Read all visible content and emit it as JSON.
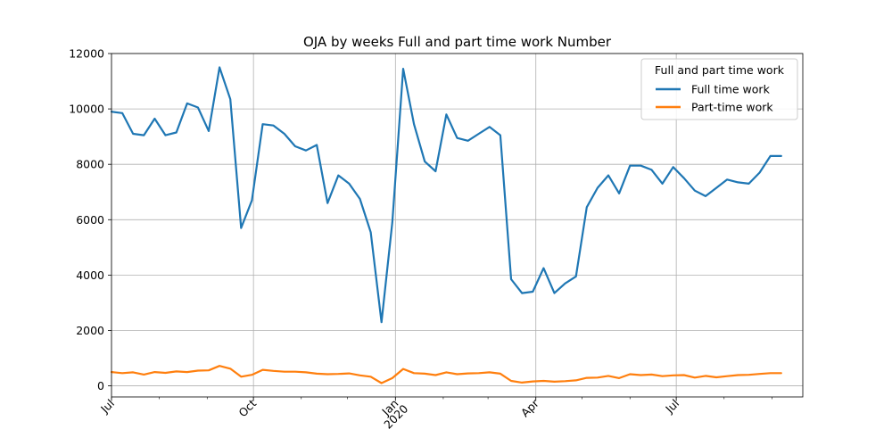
{
  "chart_data": {
    "type": "line",
    "title": "OJA by weeks Full and part time work Number",
    "xlabel": "",
    "ylabel": "",
    "ylim": [
      -400,
      12000
    ],
    "xlim": [
      "2019-07-01",
      "2020-09-21"
    ],
    "grid": true,
    "legend": {
      "title": "Full and part time work",
      "placement": "top-right"
    },
    "yticks": [
      0,
      2000,
      4000,
      6000,
      8000,
      10000,
      12000
    ],
    "yticklabels": [
      "0",
      "2000",
      "4000",
      "6000",
      "8000",
      "10000",
      "12000"
    ],
    "xticks": [
      {
        "date": "2019-07-01",
        "label": "Jul",
        "sublabel": ""
      },
      {
        "date": "2019-10-01",
        "label": "Oct",
        "sublabel": ""
      },
      {
        "date": "2020-01-01",
        "label": "Jan",
        "sublabel": "2020"
      },
      {
        "date": "2020-04-01",
        "label": "Apr",
        "sublabel": ""
      },
      {
        "date": "2020-07-01",
        "label": "Jul",
        "sublabel": ""
      }
    ],
    "x": [
      "2019-07-01",
      "2019-07-08",
      "2019-07-15",
      "2019-07-22",
      "2019-07-29",
      "2019-08-05",
      "2019-08-12",
      "2019-08-19",
      "2019-08-26",
      "2019-09-02",
      "2019-09-09",
      "2019-09-16",
      "2019-09-23",
      "2019-09-30",
      "2019-10-07",
      "2019-10-14",
      "2019-10-21",
      "2019-10-28",
      "2019-11-04",
      "2019-11-11",
      "2019-11-18",
      "2019-11-25",
      "2019-12-02",
      "2019-12-09",
      "2019-12-16",
      "2019-12-23",
      "2019-12-30",
      "2020-01-06",
      "2020-01-13",
      "2020-01-20",
      "2020-01-27",
      "2020-02-03",
      "2020-02-10",
      "2020-02-17",
      "2020-02-24",
      "2020-03-02",
      "2020-03-09",
      "2020-03-16",
      "2020-03-23",
      "2020-03-30",
      "2020-04-06",
      "2020-04-13",
      "2020-04-20",
      "2020-04-27",
      "2020-05-04",
      "2020-05-11",
      "2020-05-18",
      "2020-05-25",
      "2020-06-01",
      "2020-06-08",
      "2020-06-15",
      "2020-06-22",
      "2020-06-29",
      "2020-07-06",
      "2020-07-13",
      "2020-07-20",
      "2020-07-27",
      "2020-08-03",
      "2020-08-10",
      "2020-08-17",
      "2020-08-24",
      "2020-08-31",
      "2020-09-07"
    ],
    "series": [
      {
        "name": "Full time work",
        "color": "#1f77b4",
        "values": [
          9900,
          9850,
          9100,
          9050,
          9650,
          9050,
          9150,
          10200,
          10050,
          9200,
          11500,
          10350,
          5700,
          6700,
          9450,
          9400,
          9100,
          8650,
          8500,
          8700,
          6600,
          7600,
          7300,
          6750,
          5550,
          2300,
          5900,
          11450,
          9450,
          8100,
          7750,
          9800,
          8950,
          8850,
          9100,
          9350,
          9050,
          3850,
          3350,
          3400,
          4250,
          3350,
          3700,
          3950,
          6450,
          7150,
          7600,
          6950,
          7950,
          7950,
          7800,
          7300,
          7900,
          7500,
          7050,
          6850,
          7150,
          7450,
          7350,
          7300,
          7700,
          8300,
          8300
        ]
      },
      {
        "name": "Part-time work",
        "color": "#ff7f0e",
        "values": [
          500,
          460,
          490,
          410,
          500,
          470,
          520,
          500,
          550,
          560,
          720,
          620,
          330,
          400,
          580,
          540,
          510,
          510,
          490,
          440,
          420,
          430,
          450,
          380,
          330,
          100,
          280,
          610,
          460,
          440,
          390,
          490,
          420,
          450,
          460,
          490,
          440,
          180,
          120,
          160,
          180,
          150,
          170,
          200,
          290,
          300,
          360,
          280,
          420,
          390,
          410,
          350,
          380,
          390,
          300,
          360,
          310,
          350,
          390,
          400,
          430,
          460,
          460
        ]
      }
    ]
  }
}
